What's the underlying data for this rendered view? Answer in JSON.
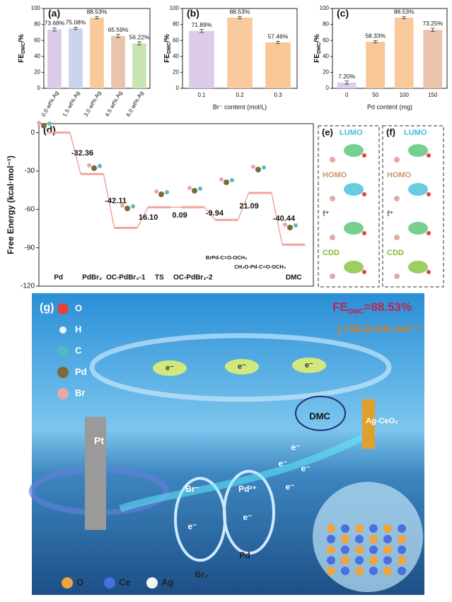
{
  "chart_data": [
    {
      "type": "bar",
      "panel": "(a)",
      "y_label": [
        "FE",
        "DMC",
        "/%"
      ],
      "categories": [
        "0.0 wt% Ag",
        "1.5 wt% Ag",
        "3.0 wt% Ag",
        "4.5 wt% Ag",
        "6.0 wt% Ag"
      ],
      "values": [
        73.68,
        75.08,
        88.53,
        65.59,
        56.22
      ],
      "errors": [
        2,
        1.5,
        1.5,
        2,
        2
      ],
      "value_labels": [
        "73.68%",
        "75.08%",
        "88.53%",
        "65.59%",
        "56.22%"
      ],
      "colors": [
        "#dccbe9",
        "#cbd4ee",
        "#f9c99b",
        "#eac3ad",
        "#c7e5b1"
      ],
      "ylim": [
        0,
        100
      ],
      "yticks": [
        0,
        20,
        40,
        60,
        80,
        100
      ]
    },
    {
      "type": "bar",
      "panel": "(b)",
      "y_label": [
        "FE",
        "DMC",
        "/%"
      ],
      "x_label": "Br⁻ content (mol/L)",
      "categories": [
        "0.1",
        "0.2",
        "0.3"
      ],
      "values": [
        71.89,
        88.53,
        57.46
      ],
      "errors": [
        2,
        1.5,
        1.5
      ],
      "value_labels": [
        "71.89%",
        "88.53%",
        "57.46%"
      ],
      "colors": [
        "#dccbe9",
        "#f9c99b",
        "#f7c896"
      ],
      "ylim": [
        0,
        100
      ],
      "yticks": [
        0,
        20,
        40,
        60,
        80,
        100
      ]
    },
    {
      "type": "bar",
      "panel": "(c)",
      "y_label": [
        "FE",
        "DMC",
        "/%"
      ],
      "x_label": "Pd content (mg)",
      "categories": [
        "0",
        "50",
        "100",
        "150"
      ],
      "values": [
        7.2,
        58.33,
        88.53,
        73.25
      ],
      "errors": [
        2,
        1.5,
        1.5,
        2
      ],
      "value_labels": [
        "7.20%",
        "58.33%",
        "88.53%",
        "73.25%"
      ],
      "colors": [
        "#dccbe9",
        "#f7c896",
        "#f9c99b",
        "#eac3ad"
      ],
      "ylim": [
        0,
        100
      ],
      "yticks": [
        0,
        20,
        40,
        60,
        80,
        100
      ]
    },
    {
      "type": "energy-profile",
      "panel": "(d)",
      "y_label": "Free Energy (kcal·mol⁻¹)",
      "categories": [
        "Pd",
        "PdBr₂",
        "OC-PdBr₂-1",
        "TS",
        "OC-PdBr₂-2",
        "BrPd-C=O-OCH₃",
        "CH₃O-Pd-C=O-OCH₃",
        "DMC"
      ],
      "values": [
        0,
        -32.36,
        -74.47,
        -58.37,
        -58.28,
        -68.22,
        -47.13,
        -87.57
      ],
      "steps": [
        -32.36,
        -42.11,
        16.1,
        0.09,
        -9.94,
        21.09,
        -40.44
      ],
      "step_labels": [
        "-32.36",
        "-42.11",
        "16.10",
        "0.09",
        "-9.94",
        "21.09",
        "-40.44"
      ],
      "color": "#f2a49c",
      "ylim": [
        -120,
        7
      ],
      "yticks": [
        0,
        -30,
        -60,
        -90,
        -120
      ]
    }
  ],
  "orbital_panels": [
    {
      "label": "(e)",
      "rows": [
        "LUMO",
        "HOMO",
        "f⁺",
        "CDD"
      ]
    },
    {
      "label": "(f)",
      "rows": [
        "LUMO",
        "HOMO",
        "f⁺",
        "CDD"
      ]
    }
  ],
  "schematic": {
    "label": "(g)",
    "atom_legend": [
      "O",
      "H",
      "C",
      "Pd",
      "Br"
    ],
    "fe": [
      "FE",
      "DMC",
      "=88.53%"
    ],
    "current_density": "j =52.5 mA·cm⁻²",
    "labels": {
      "pt": "Pt",
      "br_ion": "Br⁻",
      "pd_ion": "Pd²⁺",
      "br2": "Br₂",
      "pd": "Pd",
      "dmc": "DMC",
      "catalyst": "Ag-CeO₂"
    },
    "electrons": [
      "e⁻",
      "e⁻",
      "e⁻",
      "e⁻",
      "e⁻",
      "e⁻",
      "e⁻",
      "e⁻",
      "e⁻"
    ],
    "material_legend": [
      "O",
      "Ce",
      "Ag"
    ]
  }
}
